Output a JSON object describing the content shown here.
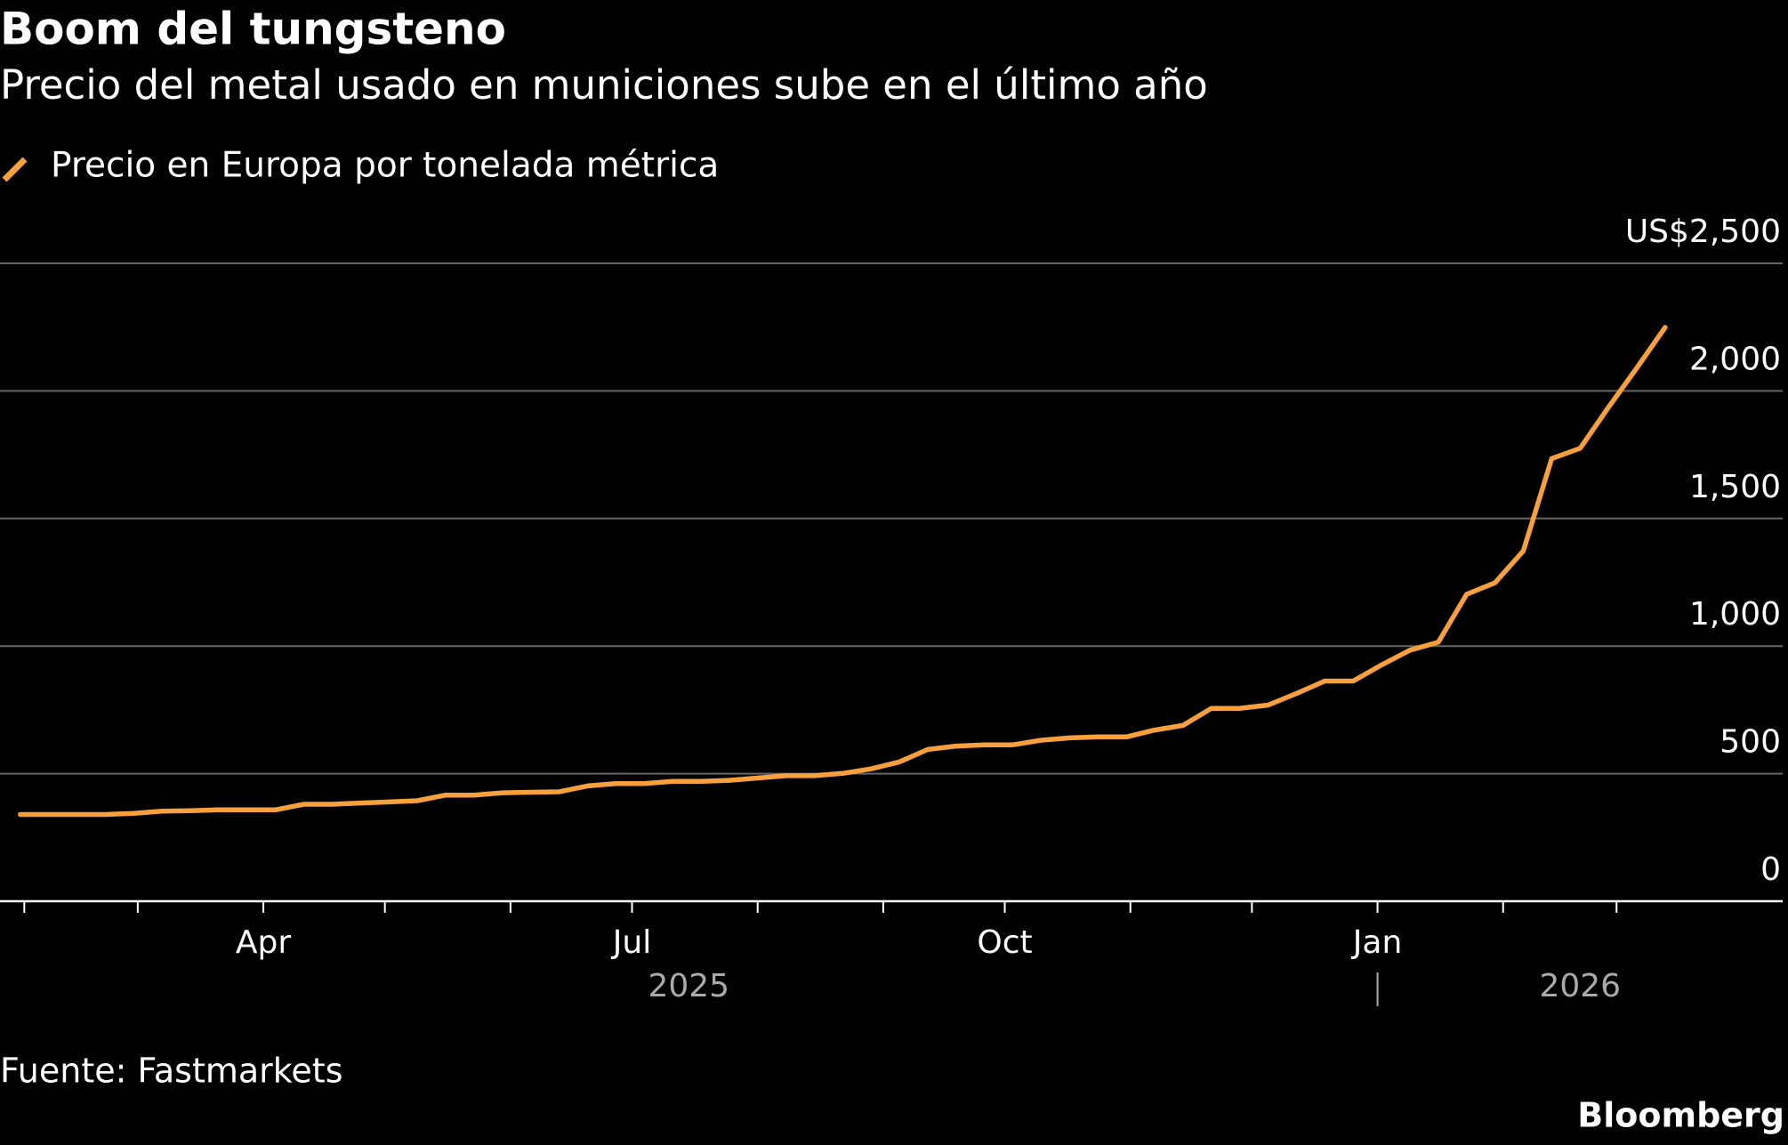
{
  "chart_data": {
    "type": "line",
    "title": "Boom del tungsteno",
    "subtitle": "Precio del metal usado en municiones sube en el último año",
    "source": "Fuente: Fastmarkets",
    "brand": "Bloomberg",
    "x": [
      "2025-01-31",
      "2025-02-07",
      "2025-02-14",
      "2025-02-21",
      "2025-02-28",
      "2025-03-07",
      "2025-03-14",
      "2025-03-21",
      "2025-03-28",
      "2025-04-04",
      "2025-04-11",
      "2025-04-18",
      "2025-04-25",
      "2025-05-02",
      "2025-05-09",
      "2025-05-16",
      "2025-05-23",
      "2025-05-30",
      "2025-06-06",
      "2025-06-13",
      "2025-06-20",
      "2025-06-27",
      "2025-07-04",
      "2025-07-11",
      "2025-07-18",
      "2025-07-25",
      "2025-08-01",
      "2025-08-08",
      "2025-08-15",
      "2025-08-22",
      "2025-08-29",
      "2025-09-05",
      "2025-09-12",
      "2025-09-19",
      "2025-09-26",
      "2025-10-03",
      "2025-10-10",
      "2025-10-17",
      "2025-10-24",
      "2025-10-31",
      "2025-11-07",
      "2025-11-14",
      "2025-11-21",
      "2025-11-28",
      "2025-12-05",
      "2025-12-12",
      "2025-12-19",
      "2025-12-26",
      "2026-01-02",
      "2026-01-09",
      "2026-01-16",
      "2026-01-23",
      "2026-01-30",
      "2026-02-06",
      "2026-02-13",
      "2026-02-20",
      "2026-02-27",
      "2026-03-06",
      "2026-03-13"
    ],
    "series": [
      {
        "name": "Precio en Europa por tonelada métrica",
        "color": "#f7a03d",
        "values": [
          340,
          340,
          340,
          340,
          344,
          353,
          355,
          358,
          358,
          358,
          380,
          380,
          385,
          389,
          394,
          416,
          416,
          425,
          427,
          429,
          452,
          461,
          461,
          470,
          470,
          474,
          483,
          492,
          492,
          501,
          519,
          546,
          595,
          608,
          613,
          613,
          631,
          640,
          644,
          644,
          671,
          689,
          756,
          756,
          769,
          814,
          863,
          863,
          926,
          984,
          1015,
          1203,
          1248,
          1373,
          1735,
          1775,
          1936,
          2090,
          2249
        ]
      }
    ],
    "xlim": [
      "2025-01-26",
      "2026-04-11"
    ],
    "xticks": [
      {
        "value": "2025-02",
        "label": null
      },
      {
        "value": "2025-03",
        "label": null
      },
      {
        "value": "2025-04",
        "label": "Apr"
      },
      {
        "value": "2025-05",
        "label": null
      },
      {
        "value": "2025-06",
        "label": null
      },
      {
        "value": "2025-07",
        "label": "Jul"
      },
      {
        "value": "2025-08",
        "label": null
      },
      {
        "value": "2025-09",
        "label": null
      },
      {
        "value": "2025-10",
        "label": "Oct"
      },
      {
        "value": "2025-11",
        "label": null
      },
      {
        "value": "2025-12",
        "label": null
      },
      {
        "value": "2026-01",
        "label": "Jan"
      },
      {
        "value": "2026-02",
        "label": null
      },
      {
        "value": "2026-03",
        "label": null
      }
    ],
    "years": [
      "2025",
      "2026"
    ],
    "ylim": [
      0,
      2500
    ],
    "yticks": [
      0,
      500,
      {
        "value": 1000,
        "label": "1,000"
      },
      {
        "value": 1500,
        "label": "1,500"
      },
      {
        "value": 2000,
        "label": "2,000"
      },
      {
        "value": 2500,
        "label": "US$2,500"
      }
    ],
    "grid": true
  }
}
